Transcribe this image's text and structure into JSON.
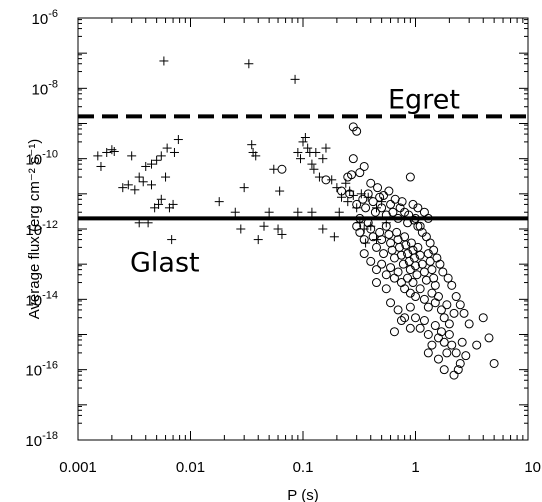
{
  "chart_data": {
    "type": "scatter",
    "xscale": "log",
    "yscale": "log",
    "xlim": [
      0.001,
      10
    ],
    "ylim": [
      1e-18,
      1e-06
    ],
    "xlabel": "P (s)",
    "ylabel": "Average flux (erg cm⁻² s⁻¹)",
    "x_ticks": [
      {
        "value": 0.001,
        "label": "0.001"
      },
      {
        "value": 0.01,
        "label": "0.01"
      },
      {
        "value": 0.1,
        "label": "0.1"
      },
      {
        "value": 1,
        "label": "1"
      },
      {
        "value": 10,
        "label": "10"
      }
    ],
    "y_ticks": [
      {
        "value": 1e-18,
        "base": "10",
        "exp": "-18"
      },
      {
        "value": 1e-16,
        "base": "10",
        "exp": "-16"
      },
      {
        "value": 1e-14,
        "base": "10",
        "exp": "-14"
      },
      {
        "value": 1e-12,
        "base": "10",
        "exp": "-12"
      },
      {
        "value": 1e-10,
        "base": "10",
        "exp": "-10"
      },
      {
        "value": 1e-08,
        "base": "10",
        "exp": "-8"
      },
      {
        "value": 1e-06,
        "base": "10",
        "exp": "-6"
      }
    ],
    "thresholds": [
      {
        "label": "Egret",
        "flux": 1.6e-09,
        "style": "dashed"
      },
      {
        "label": "Glast",
        "flux": 2e-12,
        "style": "solid"
      }
    ],
    "series": [
      {
        "marker": "plus",
        "points": [
          [
            0.0015,
            1.2e-10
          ],
          [
            0.0016,
            6e-11
          ],
          [
            0.0018,
            1.5e-10
          ],
          [
            0.002,
            1.8e-10
          ],
          [
            0.0021,
            1.6e-10
          ],
          [
            0.0025,
            1.5e-11
          ],
          [
            0.0028,
            1.8e-11
          ],
          [
            0.003,
            1.2e-10
          ],
          [
            0.0032,
            1.3e-11
          ],
          [
            0.0035,
            3e-11
          ],
          [
            0.0038,
            2.2e-11
          ],
          [
            0.004,
            6e-11
          ],
          [
            0.0042,
            1.5e-12
          ],
          [
            0.0045,
            7e-11
          ],
          [
            0.0048,
            4e-12
          ],
          [
            0.005,
            9e-11
          ],
          [
            0.0052,
            5e-12
          ],
          [
            0.0055,
            1.2e-10
          ],
          [
            0.0058,
            6e-08
          ],
          [
            0.006,
            3e-11
          ],
          [
            0.0062,
            2e-10
          ],
          [
            0.0065,
            4e-12
          ],
          [
            0.007,
            5e-12
          ],
          [
            0.0072,
            1.5e-10
          ],
          [
            0.0078,
            3.5e-10
          ],
          [
            0.0035,
            1.5e-12
          ],
          [
            0.0045,
            1.8e-11
          ],
          [
            0.0055,
            7e-12
          ],
          [
            0.0068,
            5e-13
          ],
          [
            0.018,
            6e-12
          ],
          [
            0.025,
            3e-12
          ],
          [
            0.028,
            1e-12
          ],
          [
            0.03,
            1.5e-11
          ],
          [
            0.033,
            5e-08
          ],
          [
            0.035,
            2.5e-10
          ],
          [
            0.036,
            1.5e-10
          ],
          [
            0.038,
            1.2e-10
          ],
          [
            0.04,
            5e-13
          ],
          [
            0.045,
            1.2e-12
          ],
          [
            0.05,
            3e-12
          ],
          [
            0.055,
            5e-11
          ],
          [
            0.06,
            1e-12
          ],
          [
            0.062,
            1.2e-11
          ],
          [
            0.065,
            7e-13
          ],
          [
            0.085,
            1.8e-08
          ],
          [
            0.09,
            1.5e-10
          ],
          [
            0.095,
            1e-10
          ],
          [
            0.1,
            3e-10
          ],
          [
            0.105,
            4e-10
          ],
          [
            0.11,
            2e-10
          ],
          [
            0.115,
            1.5e-10
          ],
          [
            0.12,
            7e-11
          ],
          [
            0.125,
            5e-11
          ],
          [
            0.13,
            1.5e-10
          ],
          [
            0.14,
            3e-11
          ],
          [
            0.15,
            1e-10
          ],
          [
            0.16,
            2e-10
          ],
          [
            0.18,
            2.5e-11
          ],
          [
            0.2,
            1.5e-11
          ],
          [
            0.22,
            8e-12
          ],
          [
            0.24,
            2e-11
          ],
          [
            0.26,
            1.2e-11
          ],
          [
            0.28,
            9e-12
          ],
          [
            0.09,
            3e-12
          ],
          [
            0.12,
            3e-12
          ],
          [
            0.15,
            1e-12
          ],
          [
            0.19,
            6e-13
          ],
          [
            0.21,
            3e-12
          ],
          [
            0.25,
            6e-12
          ],
          [
            0.3,
            4e-12
          ],
          [
            0.32,
            1.5e-12
          ],
          [
            0.35,
            1e-12
          ],
          [
            0.33,
            1e-11
          ],
          [
            0.38,
            8e-12
          ],
          [
            0.45,
            4e-12
          ],
          [
            0.5,
            6e-12
          ],
          [
            0.4,
            1.2e-12
          ],
          [
            0.36,
            4e-13
          ],
          [
            0.45,
            5e-13
          ],
          [
            0.55,
            1.5e-12
          ]
        ]
      },
      {
        "marker": "circle",
        "points": [
          [
            0.065,
            5e-11
          ],
          [
            0.16,
            2.5e-11
          ],
          [
            0.22,
            1.2e-11
          ],
          [
            0.25,
            3e-11
          ],
          [
            0.28,
            8e-10
          ],
          [
            0.3,
            6e-10
          ],
          [
            0.28,
            1e-10
          ],
          [
            0.32,
            4e-11
          ],
          [
            0.35,
            6e-11
          ],
          [
            0.27,
            3.5e-11
          ],
          [
            0.26,
            1e-11
          ],
          [
            0.3,
            5e-12
          ],
          [
            0.32,
            2e-12
          ],
          [
            0.34,
            7e-12
          ],
          [
            0.36,
            4e-12
          ],
          [
            0.38,
            1e-11
          ],
          [
            0.4,
            2e-11
          ],
          [
            0.42,
            6e-12
          ],
          [
            0.44,
            3e-12
          ],
          [
            0.46,
            1.5e-11
          ],
          [
            0.48,
            8e-12
          ],
          [
            0.5,
            4e-12
          ],
          [
            0.52,
            9e-12
          ],
          [
            0.55,
            2.5e-12
          ],
          [
            0.58,
            1.2e-11
          ],
          [
            0.6,
            5e-12
          ],
          [
            0.63,
            3e-12
          ],
          [
            0.66,
            7e-12
          ],
          [
            0.7,
            2e-12
          ],
          [
            0.73,
            4e-12
          ],
          [
            0.76,
            6e-12
          ],
          [
            0.8,
            3e-12
          ],
          [
            0.85,
            1.5e-12
          ],
          [
            0.9,
            3e-11
          ],
          [
            0.95,
            5e-12
          ],
          [
            1.0,
            2e-12
          ],
          [
            1.05,
            4e-12
          ],
          [
            1.1,
            1.2e-12
          ],
          [
            1.2,
            3e-12
          ],
          [
            1.3,
            2e-12
          ],
          [
            0.3,
            1.2e-12
          ],
          [
            0.32,
            8e-13
          ],
          [
            0.35,
            5e-13
          ],
          [
            0.38,
            1.5e-12
          ],
          [
            0.4,
            1e-12
          ],
          [
            0.42,
            6e-13
          ],
          [
            0.45,
            3e-13
          ],
          [
            0.48,
            8e-13
          ],
          [
            0.5,
            5e-13
          ],
          [
            0.52,
            2e-13
          ],
          [
            0.55,
            1.2e-12
          ],
          [
            0.58,
            7e-13
          ],
          [
            0.6,
            4e-13
          ],
          [
            0.62,
            2.5e-13
          ],
          [
            0.65,
            1.5e-13
          ],
          [
            0.68,
            8e-13
          ],
          [
            0.7,
            5e-13
          ],
          [
            0.72,
            3e-13
          ],
          [
            0.75,
            1.8e-13
          ],
          [
            0.78,
            1e-13
          ],
          [
            0.8,
            6e-13
          ],
          [
            0.82,
            3.5e-13
          ],
          [
            0.85,
            2e-13
          ],
          [
            0.88,
            1.2e-13
          ],
          [
            0.9,
            7e-14
          ],
          [
            0.92,
            4e-13
          ],
          [
            0.95,
            2.5e-13
          ],
          [
            0.98,
            1.5e-13
          ],
          [
            1.0,
            9e-14
          ],
          [
            1.03,
            5e-14
          ],
          [
            1.05,
            3e-13
          ],
          [
            1.1,
            1.8e-13
          ],
          [
            1.15,
            1e-13
          ],
          [
            1.2,
            6e-14
          ],
          [
            1.25,
            3.5e-14
          ],
          [
            1.3,
            2e-13
          ],
          [
            1.35,
            1.2e-13
          ],
          [
            1.4,
            7e-14
          ],
          [
            1.45,
            4e-14
          ],
          [
            1.5,
            2.5e-14
          ],
          [
            0.35,
            2e-13
          ],
          [
            0.4,
            1.2e-13
          ],
          [
            0.45,
            7e-14
          ],
          [
            0.5,
            1e-13
          ],
          [
            0.55,
            5e-14
          ],
          [
            0.6,
            8e-14
          ],
          [
            0.65,
            4e-14
          ],
          [
            0.7,
            6e-14
          ],
          [
            0.75,
            3e-14
          ],
          [
            0.8,
            2e-14
          ],
          [
            0.85,
            4e-14
          ],
          [
            0.9,
            1.5e-14
          ],
          [
            0.95,
            3e-14
          ],
          [
            1.0,
            1.2e-14
          ],
          [
            1.1,
            2e-14
          ],
          [
            1.2,
            1e-14
          ],
          [
            1.3,
            6e-15
          ],
          [
            1.4,
            1.5e-14
          ],
          [
            1.5,
            8e-15
          ],
          [
            1.6,
            1.2e-14
          ],
          [
            1.7,
            5e-15
          ],
          [
            1.8,
            3e-15
          ],
          [
            1.9,
            7e-15
          ],
          [
            2.0,
            2e-15
          ],
          [
            2.2,
            4e-15
          ],
          [
            0.6,
            8e-15
          ],
          [
            0.7,
            5e-15
          ],
          [
            0.8,
            3e-15
          ],
          [
            0.9,
            6e-15
          ],
          [
            1.0,
            3e-15
          ],
          [
            1.1,
            1.5e-15
          ],
          [
            1.2,
            2.5e-15
          ],
          [
            1.3,
            1e-15
          ],
          [
            1.4,
            5e-16
          ],
          [
            1.5,
            1.8e-15
          ],
          [
            1.6,
            8e-16
          ],
          [
            1.7,
            1.2e-15
          ],
          [
            1.8,
            6e-16
          ],
          [
            1.9,
            3e-16
          ],
          [
            2.0,
            1e-15
          ],
          [
            2.1,
            5e-16
          ],
          [
            2.3,
            3e-16
          ],
          [
            2.5,
            1.5e-16
          ],
          [
            2.6,
            6e-16
          ],
          [
            2.8,
            2.5e-16
          ],
          [
            2.4,
            1e-16
          ],
          [
            2.2,
            7e-17
          ],
          [
            1.8,
            1e-16
          ],
          [
            1.6,
            2e-16
          ],
          [
            1.3,
            3e-16
          ],
          [
            0.9,
            1.5e-15
          ],
          [
            0.75,
            2.5e-15
          ],
          [
            0.65,
            1.2e-15
          ],
          [
            0.55,
            2e-14
          ],
          [
            0.45,
            3e-14
          ],
          [
            4.0,
            3e-15
          ],
          [
            4.5,
            8e-16
          ],
          [
            5.0,
            1.5e-16
          ],
          [
            3.5,
            5e-16
          ],
          [
            3.0,
            2e-15
          ],
          [
            2.7,
            4e-15
          ],
          [
            2.5,
            7e-15
          ],
          [
            2.3,
            1.2e-14
          ],
          [
            2.1,
            2.5e-14
          ],
          [
            1.95,
            4e-14
          ],
          [
            1.75,
            6e-14
          ],
          [
            1.65,
            1e-13
          ],
          [
            1.55,
            1.5e-13
          ],
          [
            1.45,
            2.5e-13
          ],
          [
            1.35,
            4e-13
          ],
          [
            1.25,
            6e-13
          ],
          [
            1.15,
            8e-13
          ],
          [
            1.05,
            1.2e-12
          ],
          [
            0.97,
            1.8e-12
          ],
          [
            0.87,
            2.5e-12
          ]
        ]
      }
    ]
  }
}
